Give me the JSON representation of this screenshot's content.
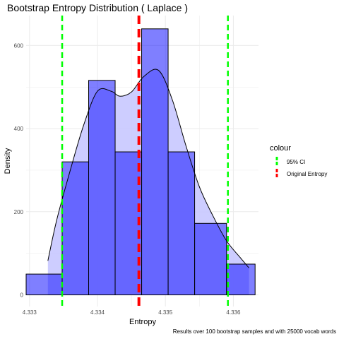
{
  "chart_data": {
    "type": "histogram",
    "title": "Bootstrap Entropy Distribution ( Laplace )",
    "xlabel": "Entropy",
    "ylabel": "Density",
    "caption": "Results over 100 bootstrap samples and with 25000 vocab words",
    "xlim": [
      4.33295,
      4.33637
    ],
    "ylim": [
      -28,
      672
    ],
    "x_ticks": [
      4.333,
      4.334,
      4.335,
      4.336
    ],
    "x_tick_labels": [
      "4.333",
      "4.334",
      "4.335",
      "4.336"
    ],
    "y_ticks": [
      0,
      200,
      400,
      600
    ],
    "y_tick_labels": [
      "0",
      "200",
      "400",
      "600"
    ],
    "grid": true,
    "bins": [
      {
        "x0": 4.33295,
        "x1": 4.33348,
        "density": 50
      },
      {
        "x0": 4.33348,
        "x1": 4.33387,
        "density": 320
      },
      {
        "x0": 4.33387,
        "x1": 4.33426,
        "density": 516
      },
      {
        "x0": 4.33426,
        "x1": 4.33465,
        "density": 344
      },
      {
        "x0": 4.33465,
        "x1": 4.33504,
        "density": 640
      },
      {
        "x0": 4.33504,
        "x1": 4.33543,
        "density": 344
      },
      {
        "x0": 4.33543,
        "x1": 4.3359,
        "density": 172
      },
      {
        "x0": 4.3359,
        "x1": 4.33632,
        "density": 74
      }
    ],
    "bin_color": "#0000ff",
    "density_curve": {
      "x": [
        4.33327,
        4.3334,
        4.3336,
        4.3338,
        4.334,
        4.3342,
        4.33433,
        4.3345,
        4.33468,
        4.3349,
        4.3351,
        4.3353,
        4.3355,
        4.3357,
        4.3359,
        4.3361,
        4.33623
      ],
      "y": [
        82,
        180,
        300,
        410,
        490,
        490,
        478,
        488,
        525,
        540,
        470,
        360,
        260,
        190,
        130,
        90,
        65
      ],
      "fill_color": "#c8c8ff"
    },
    "legend": {
      "title": "colour",
      "position": "right",
      "entries": [
        {
          "label": "95% CI",
          "color": "#00ff00"
        },
        {
          "label": "Original Entropy",
          "color": "#ff0000"
        }
      ]
    },
    "vlines": [
      {
        "series": "95% CI",
        "x": 4.33348,
        "color": "#00ff00"
      },
      {
        "series": "95% CI",
        "x": 4.33592,
        "color": "#00ff00"
      },
      {
        "series": "Original Entropy",
        "x": 4.33461,
        "color": "#ff0000"
      }
    ]
  }
}
